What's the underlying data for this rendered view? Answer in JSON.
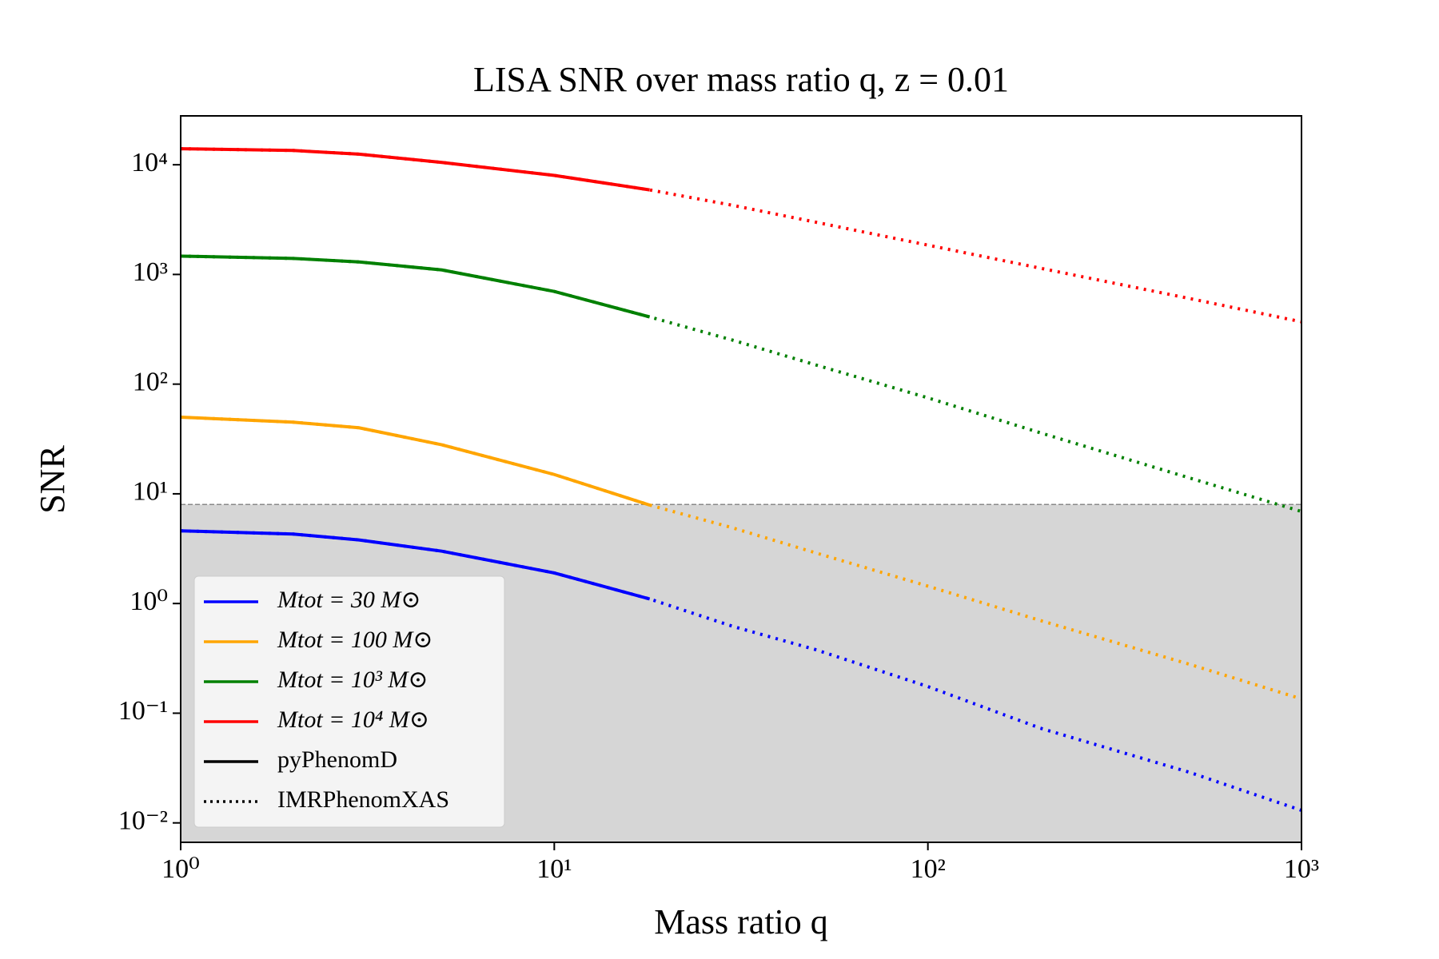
{
  "chart_data": {
    "type": "line",
    "title": "LISA SNR over mass ratio q, z = 0.01",
    "x_label": "Mass ratio q",
    "y_label": "SNR",
    "xscale": "log",
    "yscale": "log",
    "x": [
      1,
      2,
      3,
      5,
      10,
      18,
      30,
      50,
      100,
      200,
      500,
      1000
    ],
    "series": [
      {
        "name": "Mtot = 30 M⊙",
        "color": "#0000ff",
        "values": [
          4.6,
          4.3,
          3.8,
          3.0,
          1.9,
          1.1,
          null,
          null,
          null,
          null,
          null,
          null
        ],
        "dotted_values": [
          4.6,
          4.3,
          3.8,
          3.0,
          1.9,
          1.1,
          0.62,
          0.38,
          0.175,
          0.073,
          0.029,
          0.013
        ]
      },
      {
        "name": "Mtot = 100 M⊙",
        "color": "#ffa500",
        "values": [
          50,
          45,
          40,
          28,
          15,
          7.9,
          null,
          null,
          null,
          null,
          null,
          null
        ],
        "dotted_values": [
          50,
          45,
          40,
          28,
          15,
          7.9,
          4.9,
          2.9,
          1.44,
          0.7,
          0.28,
          0.135
        ]
      },
      {
        "name": "Mtot = 10³ M⊙",
        "color": "#008000",
        "values": [
          1470,
          1400,
          1300,
          1100,
          700,
          410,
          null,
          null,
          null,
          null,
          null,
          null
        ],
        "dotted_values": [
          1470,
          1400,
          1300,
          1100,
          700,
          410,
          252,
          150,
          75,
          36,
          14,
          6.9
        ]
      },
      {
        "name": "Mtot = 10⁴ M⊙",
        "color": "#ff0000",
        "values": [
          14000,
          13500,
          12500,
          10500,
          8000,
          5900,
          null,
          null,
          null,
          null,
          null,
          null
        ],
        "dotted_values": [
          14000,
          13500,
          12500,
          10500,
          8000,
          5900,
          4270,
          3000,
          1850,
          1140,
          605,
          370
        ]
      }
    ],
    "styles": [
      {
        "name": "pyPhenomD",
        "dash": "solid",
        "color": "#000000"
      },
      {
        "name": "IMRPhenomXAS",
        "dash": "dotted",
        "color": "#000000"
      }
    ],
    "threshold": 8,
    "threshold_color": "#d6d6d6",
    "xlim": [
      1,
      1000
    ],
    "xticks": [
      {
        "value": 1,
        "label": "10⁰"
      },
      {
        "value": 10,
        "label": "10¹"
      },
      {
        "value": 100,
        "label": "10²"
      },
      {
        "value": 1000,
        "label": "10³"
      }
    ],
    "ylim": [
      0.00665,
      27900
    ],
    "yticks": [
      {
        "value": 0.01,
        "label": "10⁻²"
      },
      {
        "value": 0.1,
        "label": "10⁻¹"
      },
      {
        "value": 1,
        "label": "10⁰"
      },
      {
        "value": 10,
        "label": "10¹"
      },
      {
        "value": 100,
        "label": "10²"
      },
      {
        "value": 1000,
        "label": "10³"
      },
      {
        "value": 10000,
        "label": "10⁴"
      }
    ],
    "legend": "lower left"
  }
}
